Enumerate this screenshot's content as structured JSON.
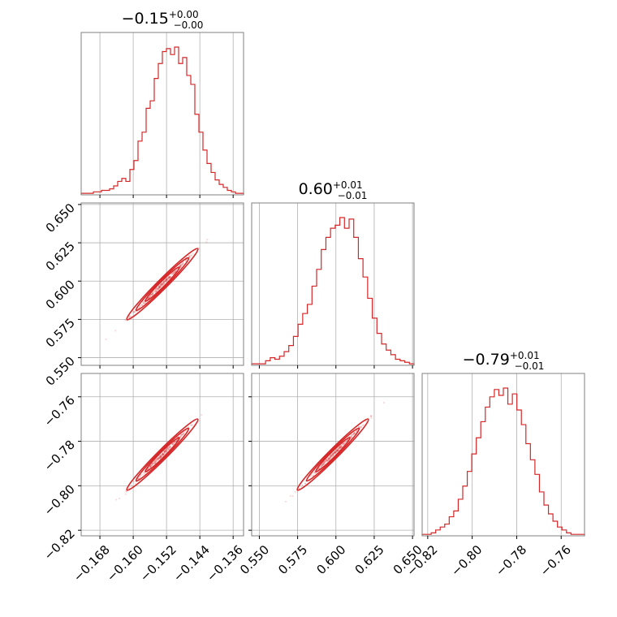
{
  "chart_data": {
    "type": "corner",
    "color": "#d62728",
    "grid": true,
    "parameters": [
      {
        "title": {
          "median": "−0.15",
          "plus": "+0.00",
          "minus": "−0.00"
        },
        "range": [
          -0.1725,
          -0.1335
        ],
        "ticks": [
          -0.168,
          -0.16,
          -0.152,
          -0.144,
          -0.136
        ],
        "tick_labels": [
          "−0.168",
          "−0.160",
          "−0.152",
          "−0.144",
          "−0.136"
        ],
        "hist_values": [
          1,
          1,
          1,
          2,
          2,
          3,
          3,
          4,
          6,
          9,
          11,
          9,
          17,
          23,
          36,
          42,
          58,
          63,
          78,
          88,
          96,
          98,
          94,
          99,
          88,
          92,
          80,
          74,
          54,
          42,
          30,
          21,
          15,
          10,
          7,
          5,
          3,
          2,
          1,
          1
        ]
      },
      {
        "title": {
          "median": "0.60",
          "plus": "+0.01",
          "minus": "−0.01"
        },
        "range": [
          0.545,
          0.651
        ],
        "ticks": [
          0.55,
          0.575,
          0.6,
          0.625,
          0.65
        ],
        "tick_labels": [
          "0.550",
          "0.575",
          "0.600",
          "0.625",
          "0.650"
        ],
        "hist_values": [
          1,
          1,
          1,
          3,
          5,
          4,
          6,
          9,
          13,
          19,
          27,
          34,
          40,
          52,
          63,
          76,
          84,
          90,
          92,
          97,
          90,
          96,
          84,
          70,
          58,
          44,
          31,
          21,
          14,
          10,
          7,
          4,
          3,
          2,
          1
        ]
      },
      {
        "title": {
          "median": "−0.79",
          "plus": "+0.01",
          "minus": "−0.01"
        },
        "range": [
          -0.8225,
          -0.7495
        ],
        "ticks": [
          -0.82,
          -0.8,
          -0.78,
          -0.76
        ],
        "tick_labels": [
          "−0.82",
          "−0.80",
          "−0.78",
          "−0.76"
        ],
        "hist_values": [
          1,
          1,
          2,
          4,
          6,
          8,
          13,
          17,
          25,
          34,
          44,
          56,
          67,
          78,
          88,
          95,
          100,
          96,
          101,
          90,
          97,
          86,
          76,
          63,
          52,
          42,
          30,
          21,
          15,
          10,
          6,
          4,
          2,
          1,
          1,
          1
        ]
      }
    ]
  }
}
